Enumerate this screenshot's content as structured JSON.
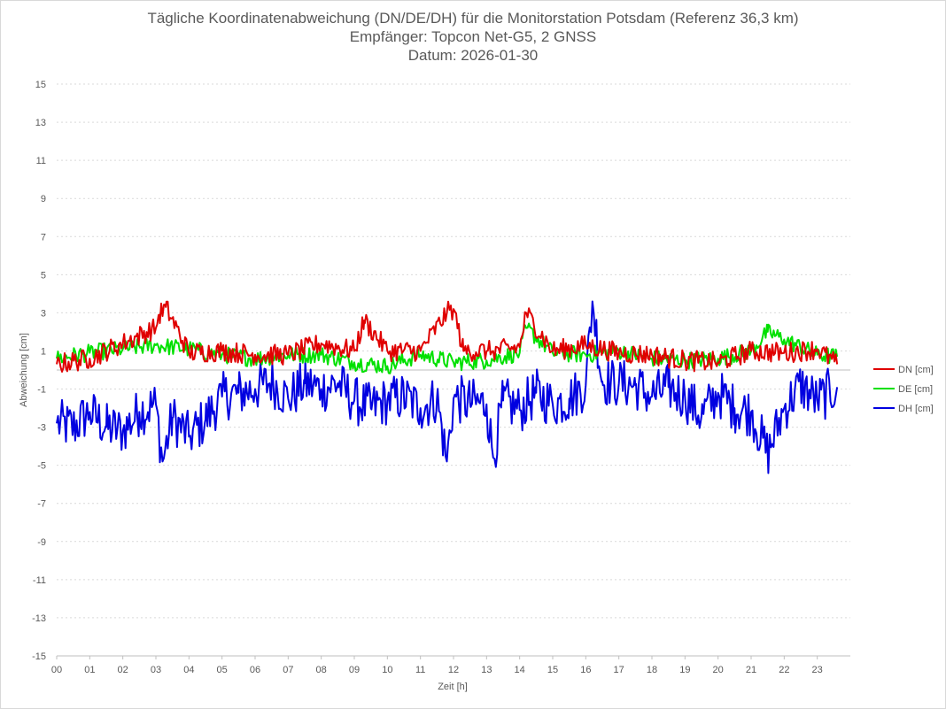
{
  "chart_data": {
    "type": "line",
    "title": "Tägliche Koordinatenabweichung (DN/DE/DH) für die Monitorstation Potsdam (Referenz 36,3 km)",
    "subtitle": "Empfänger: Topcon Net-G5, 2 GNSS",
    "date_line": "Datum: 2026-01-30",
    "xlabel": "Zeit [h]",
    "ylabel": "Abweichung [cm]",
    "ylim": [
      -15,
      15
    ],
    "yticks": [
      15,
      13,
      11,
      9,
      7,
      5,
      3,
      1,
      -1,
      -3,
      -5,
      -7,
      -9,
      -11,
      -13,
      -15
    ],
    "xlim": [
      0,
      24
    ],
    "xticks": [
      "00",
      "01",
      "02",
      "03",
      "04",
      "05",
      "06",
      "07",
      "08",
      "09",
      "10",
      "11",
      "12",
      "13",
      "14",
      "15",
      "16",
      "17",
      "18",
      "19",
      "20",
      "21",
      "22",
      "23"
    ],
    "grid": true,
    "legend_position": "right",
    "series": [
      {
        "name": "DN [cm]",
        "color": "#e00000",
        "x": [
          0,
          1,
          2,
          3,
          3.1,
          3.3,
          4,
          5,
          6,
          7,
          8,
          9,
          9.3,
          10,
          11,
          11.8,
          12,
          12.3,
          13,
          13.2,
          14,
          14.2,
          15,
          16,
          17,
          18,
          19,
          20,
          21,
          22,
          23,
          23.6
        ],
        "y": [
          0.3,
          0.6,
          1.4,
          2.2,
          2.9,
          3.3,
          0.9,
          1.0,
          0.8,
          0.8,
          1.4,
          1.0,
          2.6,
          1.0,
          1.0,
          3.0,
          3.2,
          1.0,
          1.0,
          1.0,
          1.2,
          3.0,
          1.0,
          1.3,
          0.9,
          0.8,
          0.5,
          0.4,
          1.0,
          0.9,
          1.1,
          0.3
        ]
      },
      {
        "name": "DE [cm]",
        "color": "#00e000",
        "x": [
          0,
          1,
          2,
          3,
          4,
          5,
          6,
          7,
          8,
          9,
          10,
          11,
          12,
          13,
          14,
          14.2,
          15,
          16,
          17,
          18,
          19,
          20,
          21,
          21.5,
          22,
          23,
          23.6
        ],
        "y": [
          0.6,
          0.9,
          1.1,
          1.3,
          1.1,
          0.8,
          0.6,
          0.8,
          0.8,
          0.4,
          0.2,
          0.8,
          0.4,
          0.5,
          0.9,
          2.2,
          0.9,
          0.8,
          1.0,
          0.6,
          0.5,
          0.6,
          1.0,
          2.0,
          1.6,
          0.8,
          0.7
        ]
      },
      {
        "name": "DH [cm]",
        "color": "#0000e0",
        "x": [
          0,
          0.5,
          1,
          1.5,
          2,
          2.5,
          3,
          3.2,
          3.5,
          4,
          4.5,
          5,
          5.5,
          6,
          6.5,
          7,
          7.5,
          8,
          8.5,
          9,
          9.5,
          10,
          10.5,
          11,
          11.5,
          11.8,
          12,
          12.5,
          13,
          13.2,
          13.5,
          14,
          14.5,
          15,
          15.5,
          16,
          16.2,
          16.5,
          17,
          17.5,
          18,
          18.5,
          19,
          19.5,
          20,
          20.5,
          21,
          21.5,
          22,
          22.5,
          23,
          23.6
        ],
        "y": [
          -2.8,
          -3.0,
          -2.2,
          -3.0,
          -3.2,
          -2.2,
          -1.8,
          -4.8,
          -2.5,
          -3.5,
          -2.6,
          -1.4,
          -1.2,
          -1.0,
          -0.6,
          -1.5,
          -0.7,
          -1.0,
          -0.7,
          -1.6,
          -2.0,
          -1.6,
          -1.4,
          -2.0,
          -1.5,
          -4.8,
          -1.5,
          -1.7,
          -1.8,
          -4.6,
          -1.6,
          -2.1,
          -1.2,
          -1.8,
          -1.5,
          -0.8,
          3.6,
          -0.6,
          -0.7,
          -0.8,
          -1.4,
          -0.9,
          -1.4,
          -2.4,
          -1.2,
          -2.0,
          -2.2,
          -4.4,
          -2.0,
          -0.8,
          -1.6,
          -0.9
        ]
      }
    ]
  }
}
